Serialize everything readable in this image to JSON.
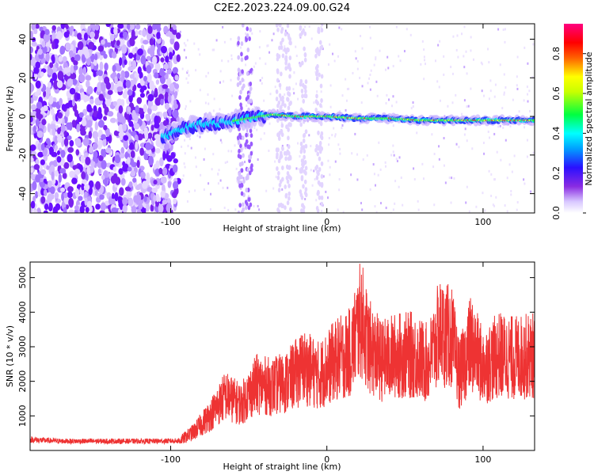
{
  "title": "C2E2.2023.224.09.00.G24",
  "colors": {
    "snr_line": "#ee3333",
    "axis": "#000000",
    "background": "#ffffff"
  },
  "chart_data": [
    {
      "type": "heatmap",
      "xlabel": "Height of straight line (km)",
      "ylabel": "Frequency (Hz)",
      "xlim": [
        -190,
        133
      ],
      "ylim": [
        -50,
        48
      ],
      "x_ticks": [
        -100,
        0,
        100
      ],
      "y_ticks": [
        -40,
        -20,
        0,
        20,
        40
      ],
      "colorbar": {
        "label": "Normalized spectral amplitude",
        "range": [
          0,
          0.95
        ],
        "ticks": [
          0.0,
          0.2,
          0.4,
          0.6,
          0.8
        ],
        "colormap": "rainbow (white-purple-blue-cyan-green-yellow-red-magenta)"
      },
      "ridge": {
        "x": [
          -105,
          -95,
          -80,
          -65,
          -50,
          -35,
          -20,
          0,
          20,
          40,
          60,
          80,
          95,
          110,
          133
        ],
        "frequency": [
          -11,
          -7,
          -4,
          -3,
          -1,
          1,
          0,
          0,
          -1,
          -1,
          -2,
          -2,
          -2,
          -2,
          -2
        ]
      }
    },
    {
      "type": "line",
      "xlabel": "Height of straight line (km)",
      "ylabel": "SNR (10 * v/v)",
      "xlim": [
        -190,
        133
      ],
      "ylim": [
        0,
        5450
      ],
      "x_ticks": [
        -100,
        0,
        100
      ],
      "y_ticks": [
        1000,
        2000,
        3000,
        4000,
        5000
      ],
      "series": [
        {
          "x": [
            -190,
            -170,
            -150,
            -130,
            -110,
            -95,
            -85,
            -75,
            -65,
            -55,
            -45,
            -35,
            -25,
            -15,
            -5,
            5,
            15,
            22,
            27,
            35,
            45,
            55,
            65,
            72,
            80,
            85,
            92,
            100,
            110,
            120,
            133
          ],
          "y": [
            350,
            300,
            300,
            300,
            300,
            310,
            650,
            1200,
            1900,
            1600,
            2300,
            2200,
            2400,
            2900,
            2600,
            3100,
            3400,
            4600,
            3600,
            3100,
            3300,
            3300,
            3000,
            4100,
            3900,
            2600,
            3700,
            2900,
            3300,
            3200,
            3300
          ]
        }
      ]
    }
  ]
}
